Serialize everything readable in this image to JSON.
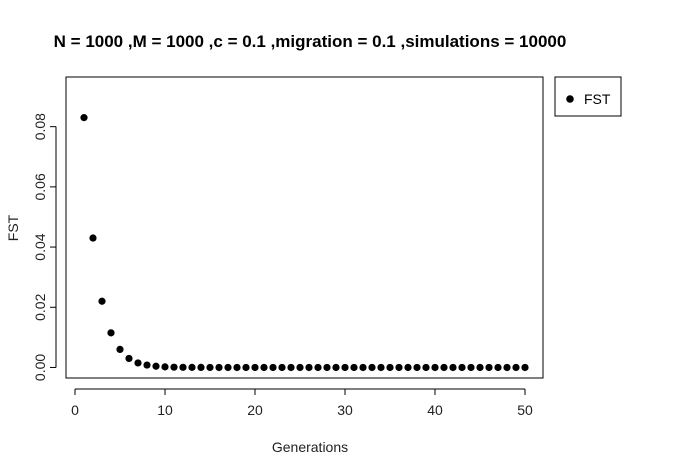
{
  "chart_data": {
    "type": "scatter",
    "title": "N = 1000 ,M = 1000 ,c = 0.1 ,migration = 0.1 ,simulations = 10000",
    "xlabel": "Generations",
    "ylabel": "FST",
    "xlim": [
      -1,
      52
    ],
    "ylim": [
      -0.0035,
      0.0965
    ],
    "xticks": [
      "0",
      "10",
      "20",
      "30",
      "40",
      "50"
    ],
    "yticks": [
      "0.00",
      "0.02",
      "0.04",
      "0.06",
      "0.08"
    ],
    "grid": false,
    "legend": {
      "position": "right-outside-top",
      "entries": [
        "FST"
      ]
    },
    "colors": {
      "points": "#000000",
      "axes": "#000000"
    },
    "series": [
      {
        "name": "FST",
        "x": [
          1,
          2,
          3,
          4,
          5,
          6,
          7,
          8,
          9,
          10,
          11,
          12,
          13,
          14,
          15,
          16,
          17,
          18,
          19,
          20,
          21,
          22,
          23,
          24,
          25,
          26,
          27,
          28,
          29,
          30,
          31,
          32,
          33,
          34,
          35,
          36,
          37,
          38,
          39,
          40,
          41,
          42,
          43,
          44,
          45,
          46,
          47,
          48,
          49,
          50
        ],
        "y": [
          0.083,
          0.043,
          0.022,
          0.0115,
          0.006,
          0.003,
          0.0015,
          0.0008,
          0.0004,
          0.0002,
          0.0001,
          5e-05,
          3e-05,
          2e-05,
          1e-05,
          0,
          0,
          0,
          0,
          0,
          0,
          0,
          0,
          0,
          0,
          0,
          0,
          0,
          0,
          0,
          0,
          0,
          0,
          0,
          0,
          0,
          0,
          0,
          0,
          0,
          0,
          0,
          0,
          0,
          0,
          0,
          0,
          0,
          0,
          0
        ]
      }
    ]
  }
}
